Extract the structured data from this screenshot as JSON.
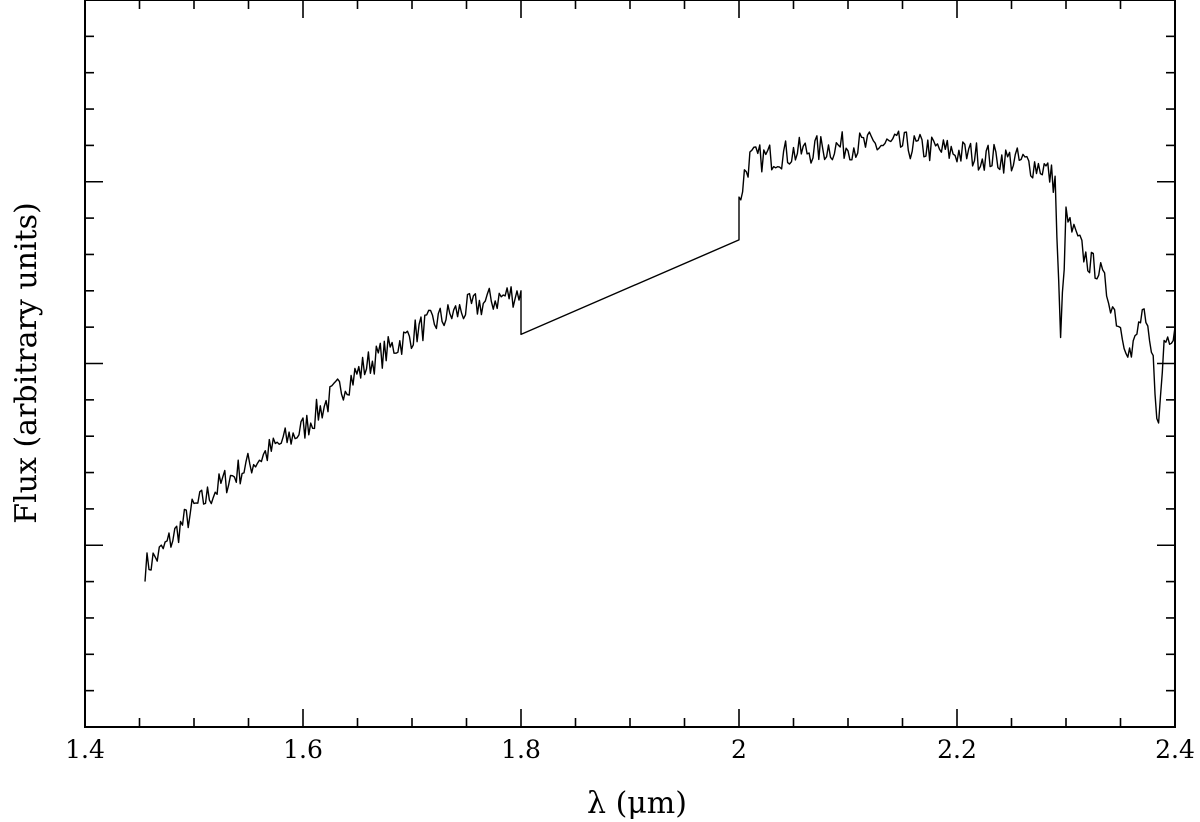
{
  "chart_data": {
    "type": "line",
    "title": "",
    "xlabel": "λ (μm)",
    "ylabel": "Flux (arbitrary units)",
    "xlim": [
      1.4,
      2.4
    ],
    "ylim": [
      0,
      1
    ],
    "x_ticks": [
      1.4,
      1.6,
      1.8,
      2.0,
      2.2,
      2.4
    ],
    "x_tick_labels": [
      "1.4",
      "1.6",
      "1.8",
      "2",
      "2.2",
      "2.4"
    ],
    "y_tick_labels_shown": false,
    "grid": false,
    "series": [
      {
        "x": [
          1.455,
          1.47,
          1.5,
          1.53,
          1.56,
          1.6,
          1.63,
          1.66,
          1.68,
          1.71,
          1.74,
          1.76,
          1.78,
          1.8,
          1.8,
          2.0,
          2.0,
          2.005,
          2.01,
          2.05,
          2.1,
          2.15,
          2.2,
          2.25,
          2.28,
          2.29,
          2.295,
          2.3,
          2.32,
          2.33,
          2.35,
          2.36,
          2.37,
          2.38,
          2.385,
          2.39,
          2.4
        ],
        "y": [
          0.22,
          0.24,
          0.3,
          0.34,
          0.37,
          0.41,
          0.46,
          0.5,
          0.52,
          0.55,
          0.57,
          0.58,
          0.59,
          0.6,
          0.54,
          0.67,
          0.72,
          0.76,
          0.78,
          0.79,
          0.8,
          0.8,
          0.79,
          0.78,
          0.77,
          0.75,
          0.53,
          0.7,
          0.64,
          0.63,
          0.55,
          0.51,
          0.57,
          0.5,
          0.41,
          0.53,
          0.55
        ]
      }
    ]
  }
}
